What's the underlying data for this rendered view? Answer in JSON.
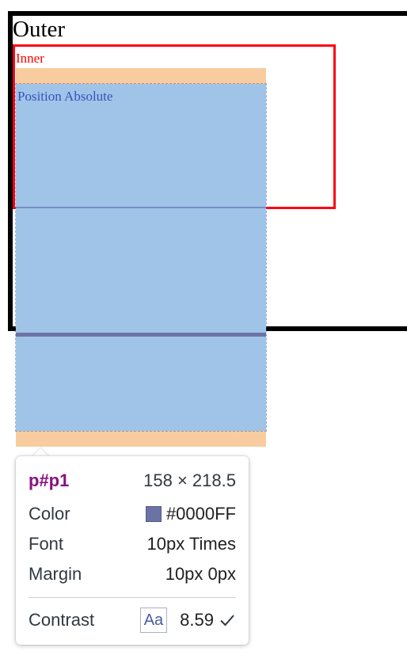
{
  "page": {
    "outer_label": "Outer",
    "inner_label": "Inner",
    "absolute_label": "Position Absolute"
  },
  "colors": {
    "outer_border": "#000000",
    "inner_border": "#ff0015",
    "inner_text": "#ff0000",
    "absolute_text": "#0000ff",
    "highlight_margin": "#f8cc9f",
    "highlight_content": "#9fc4e7",
    "swatch": "#0000FF"
  },
  "tooltip": {
    "element": "p#p1",
    "dimensions": "158 × 218.5",
    "rows": [
      {
        "label": "Color",
        "value": "#0000FF"
      },
      {
        "label": "Font",
        "value": "10px Times"
      },
      {
        "label": "Margin",
        "value": "10px 0px"
      }
    ],
    "contrast": {
      "label": "Contrast",
      "sample": "Aa",
      "value": "8.59",
      "icon": "check-icon"
    }
  }
}
